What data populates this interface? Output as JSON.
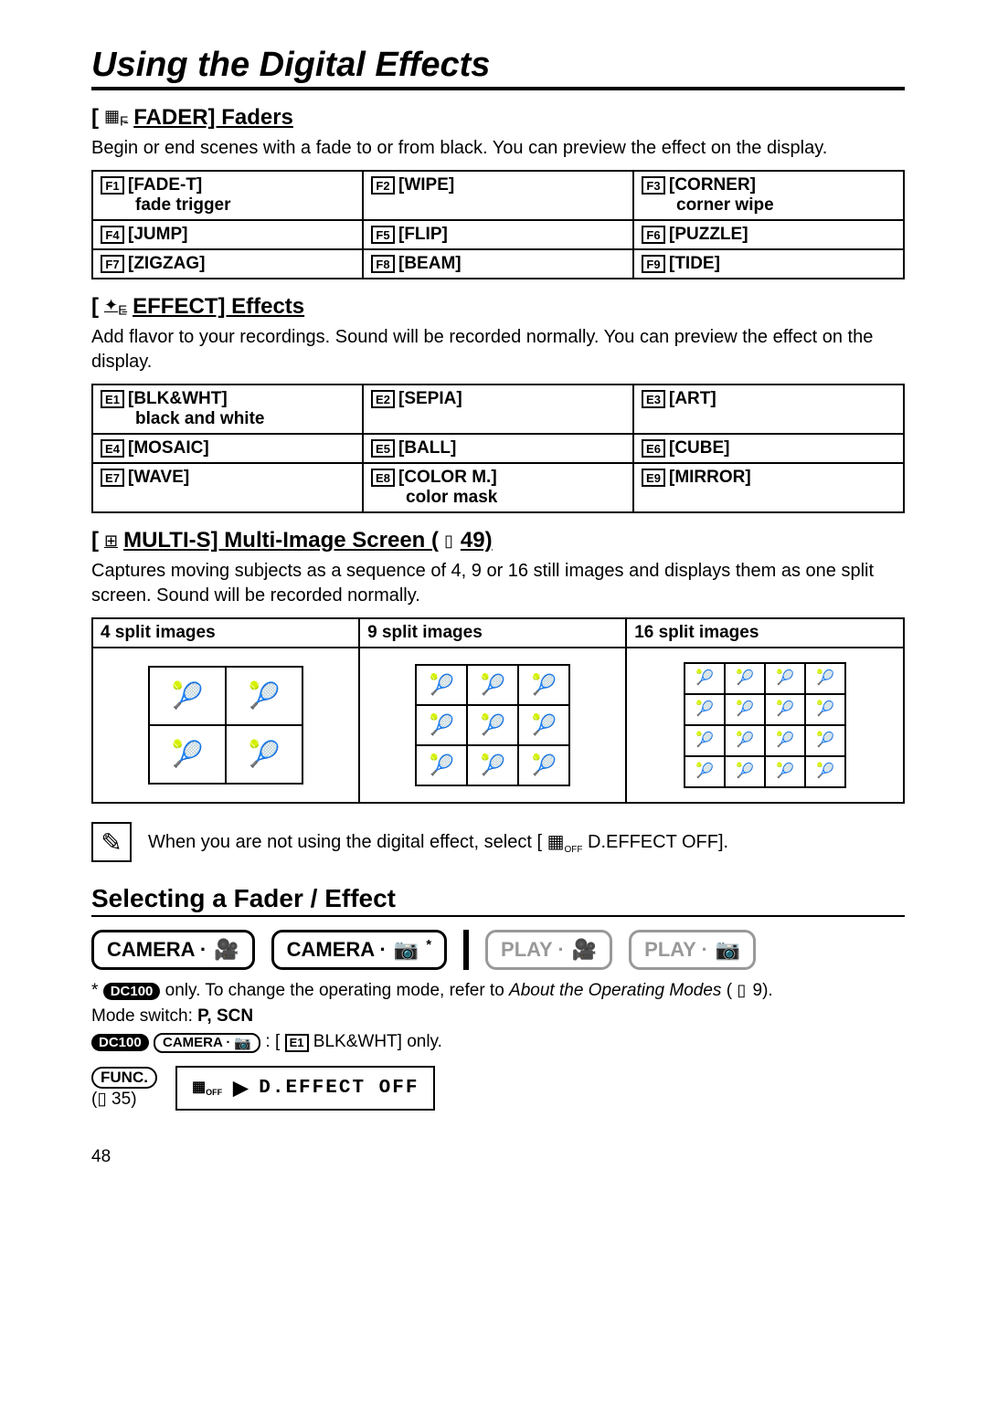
{
  "page": {
    "title": "Using the Digital Effects",
    "number": "48"
  },
  "faders": {
    "heading": "FADER] Faders",
    "prefix": "[",
    "icon_label": "fader-icon",
    "body": "Begin or end scenes with a fade to or from black. You can preview the effect on the display.",
    "items": [
      {
        "code": "F1",
        "label": "[FADE-T]",
        "sub": "fade trigger"
      },
      {
        "code": "F2",
        "label": "[WIPE]",
        "sub": ""
      },
      {
        "code": "F3",
        "label": "[CORNER]",
        "sub": "corner wipe"
      },
      {
        "code": "F4",
        "label": "[JUMP]",
        "sub": ""
      },
      {
        "code": "F5",
        "label": "[FLIP]",
        "sub": ""
      },
      {
        "code": "F6",
        "label": "[PUZZLE]",
        "sub": ""
      },
      {
        "code": "F7",
        "label": "[ZIGZAG]",
        "sub": ""
      },
      {
        "code": "F8",
        "label": "[BEAM]",
        "sub": ""
      },
      {
        "code": "F9",
        "label": "[TIDE]",
        "sub": ""
      }
    ]
  },
  "effects": {
    "heading": "EFFECT] Effects",
    "prefix": "[",
    "body": "Add flavor to your recordings. Sound will be recorded normally. You can preview the effect on the display.",
    "items": [
      {
        "code": "E1",
        "label": "[BLK&WHT]",
        "sub": "black and white"
      },
      {
        "code": "E2",
        "label": "[SEPIA]",
        "sub": ""
      },
      {
        "code": "E3",
        "label": "[ART]",
        "sub": ""
      },
      {
        "code": "E4",
        "label": "[MOSAIC]",
        "sub": ""
      },
      {
        "code": "E5",
        "label": "[BALL]",
        "sub": ""
      },
      {
        "code": "E6",
        "label": "[CUBE]",
        "sub": ""
      },
      {
        "code": "E7",
        "label": "[WAVE]",
        "sub": ""
      },
      {
        "code": "E8",
        "label": "[COLOR M.]",
        "sub": "color mask"
      },
      {
        "code": "E9",
        "label": "[MIRROR]",
        "sub": ""
      }
    ]
  },
  "multis": {
    "heading_prefix": "[",
    "heading": "MULTI-S] Multi-Image Screen (",
    "page_ref": "49)",
    "body": "Captures moving subjects as a sequence of 4, 9 or 16 still images and displays them as one split screen. Sound will be recorded normally.",
    "headers": [
      "4 split images",
      "9 split images",
      "16 split images"
    ]
  },
  "note": {
    "text_a": "When you are not using the digital effect, select [",
    "text_b": " D.EFFECT OFF]."
  },
  "selecting": {
    "title": "Selecting a Fader / Effect",
    "modes": {
      "m1": "CAMERA ·",
      "m2": "CAMERA ·",
      "m3": "PLAY ·",
      "m4": "PLAY ·"
    },
    "footnote_star": "*",
    "footnote_dc": "DC100",
    "footnote1a": " only. To change the operating mode, refer to ",
    "footnote1b": "About the Operating Modes",
    "footnote1c": " (",
    "footnote1d": " 9).",
    "mode_switch_label": "Mode switch: ",
    "mode_switch_value": "P, SCN",
    "footnote2_dc": "DC100",
    "footnote2_cam": "CAMERA ·",
    "footnote2_text_a": " : [",
    "footnote2_code": "E1",
    "footnote2_text_b": " BLK&WHT] only.",
    "func_label": "FUNC.",
    "func_ref": "(▯ 35)",
    "menu_text": "D.EFFECT OFF"
  }
}
